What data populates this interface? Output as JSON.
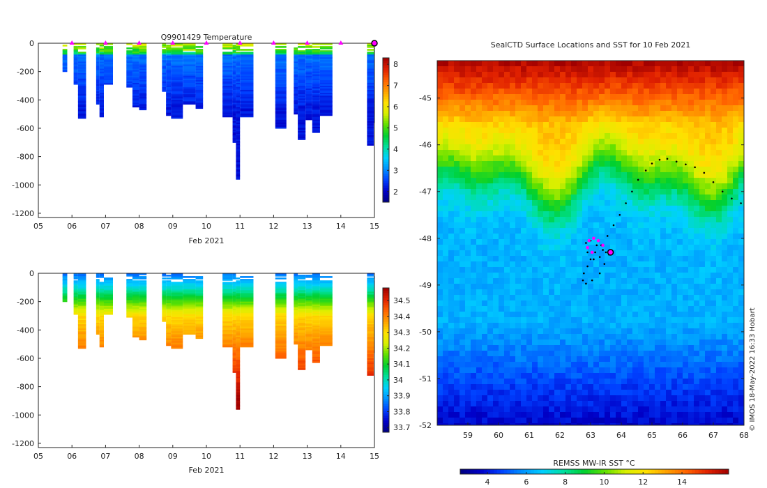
{
  "colors": {
    "temp_scale": [
      "#000080",
      "#0000c8",
      "#0040ff",
      "#0090ff",
      "#00d0ff",
      "#00e0a0",
      "#00d030",
      "#60e000",
      "#d8f000",
      "#ffe000",
      "#ffa000",
      "#ff6000",
      "#e02000",
      "#a00000"
    ],
    "sst_scale": [
      "#000080",
      "#0000c8",
      "#0040ff",
      "#0090ff",
      "#00d0ff",
      "#00e0a0",
      "#00d030",
      "#60e000",
      "#d8f000",
      "#ffe000",
      "#ffa000",
      "#ff6000",
      "#e02000",
      "#a00000"
    ],
    "sal_scale": [
      "#000080",
      "#0000c8",
      "#0040ff",
      "#0090ff",
      "#00d0ff",
      "#00e0a0",
      "#00d030",
      "#60e000",
      "#d8f000",
      "#ffe000",
      "#ffa000",
      "#ff6000",
      "#e02000",
      "#a00000"
    ],
    "marker": "#ff00ff",
    "track": "#000000"
  },
  "chart_data": [
    {
      "type": "heatmap",
      "id": "temperature",
      "title": "Q9901429  Temperature",
      "xlabel": "Feb 2021",
      "ylabel": "",
      "xlim": [
        5,
        15
      ],
      "ylim": [
        -1230,
        0
      ],
      "xticks": [
        "05",
        "06",
        "07",
        "08",
        "09",
        "10",
        "11",
        "12",
        "13",
        "14",
        "15"
      ],
      "yticks": [
        "0",
        "-200",
        "-400",
        "-600",
        "-800",
        "-1000",
        "-1200"
      ],
      "colorbar": {
        "min": 1.5,
        "max": 8.3,
        "ticks": [
          "2",
          "3",
          "4",
          "5",
          "6",
          "7",
          "8"
        ]
      },
      "surface_markers": [
        6,
        7,
        8,
        9,
        10,
        11,
        12,
        13,
        14
      ],
      "last_position": 15,
      "profiles": [
        {
          "t0": 5.72,
          "t1": 5.86,
          "depth": -200
        },
        {
          "t0": 6.05,
          "t1": 6.18,
          "depth": -290
        },
        {
          "t0": 6.18,
          "t1": 6.42,
          "depth": -530
        },
        {
          "t0": 6.72,
          "t1": 6.82,
          "depth": -430
        },
        {
          "t0": 6.82,
          "t1": 6.95,
          "depth": -520
        },
        {
          "t0": 6.95,
          "t1": 7.22,
          "depth": -285
        },
        {
          "t0": 7.62,
          "t1": 7.8,
          "depth": -310
        },
        {
          "t0": 7.8,
          "t1": 8.0,
          "depth": -445
        },
        {
          "t0": 8.0,
          "t1": 8.22,
          "depth": -470
        },
        {
          "t0": 8.68,
          "t1": 8.8,
          "depth": -340
        },
        {
          "t0": 8.8,
          "t1": 8.95,
          "depth": -510
        },
        {
          "t0": 8.95,
          "t1": 9.3,
          "depth": -525
        },
        {
          "t0": 9.3,
          "t1": 9.68,
          "depth": -425
        },
        {
          "t0": 9.68,
          "t1": 9.9,
          "depth": -460
        },
        {
          "t0": 10.48,
          "t1": 10.78,
          "depth": -520
        },
        {
          "t0": 10.78,
          "t1": 10.88,
          "depth": -700
        },
        {
          "t0": 10.88,
          "t1": 11.0,
          "depth": -960
        },
        {
          "t0": 11.0,
          "t1": 11.4,
          "depth": -515
        },
        {
          "t0": 12.05,
          "t1": 12.38,
          "depth": -600
        },
        {
          "t0": 12.6,
          "t1": 12.72,
          "depth": -500
        },
        {
          "t0": 12.72,
          "t1": 12.95,
          "depth": -680
        },
        {
          "t0": 12.95,
          "t1": 13.15,
          "depth": -540
        },
        {
          "t0": 13.15,
          "t1": 13.38,
          "depth": -630
        },
        {
          "t0": 13.38,
          "t1": 13.75,
          "depth": -510
        },
        {
          "t0": 14.78,
          "t1": 14.98,
          "depth": -720
        },
        {
          "t0": 14.98,
          "t1": 15.05,
          "depth": -560
        }
      ]
    },
    {
      "type": "heatmap",
      "id": "salinity",
      "title": "",
      "xlabel": "Feb 2021",
      "ylabel": "",
      "xlim": [
        5,
        15
      ],
      "ylim": [
        -1230,
        0
      ],
      "xticks": [
        "05",
        "06",
        "07",
        "08",
        "09",
        "10",
        "11",
        "12",
        "13",
        "14",
        "15"
      ],
      "yticks": [
        "0",
        "-200",
        "-400",
        "-600",
        "-800",
        "-1000",
        "-1200"
      ],
      "colorbar": {
        "min": 33.67,
        "max": 34.58,
        "ticks": [
          "33.7",
          "33.8",
          "33.9",
          "34",
          "34.1",
          "34.2",
          "34.3",
          "34.4",
          "34.5"
        ]
      }
    },
    {
      "type": "heatmap",
      "id": "sst_map",
      "title": "SealCTD Surface Locations and SST for 10 Feb 2021",
      "xlabel": "",
      "ylabel": "",
      "xlim": [
        58,
        68
      ],
      "ylim": [
        -52,
        -44.2
      ],
      "xticks": [
        "59",
        "60",
        "61",
        "62",
        "63",
        "64",
        "65",
        "66",
        "67",
        "68"
      ],
      "yticks": [
        "-45",
        "-46",
        "-47",
        "-48",
        "-49",
        "-50",
        "-51",
        "-52"
      ],
      "colorbar": {
        "label": "REMSS MW-IR SST °C",
        "min": 2.6,
        "max": 16.4,
        "ticks": [
          "4",
          "6",
          "8",
          "10",
          "12",
          "14"
        ]
      },
      "track": [
        [
          67.9,
          -47.25
        ],
        [
          67.6,
          -47.15
        ],
        [
          67.3,
          -47.0
        ],
        [
          67.0,
          -46.8
        ],
        [
          66.7,
          -46.6
        ],
        [
          66.4,
          -46.48
        ],
        [
          66.1,
          -46.42
        ],
        [
          65.8,
          -46.36
        ],
        [
          65.5,
          -46.3
        ],
        [
          65.25,
          -46.32
        ],
        [
          65.0,
          -46.4
        ],
        [
          64.8,
          -46.55
        ],
        [
          64.55,
          -46.75
        ],
        [
          64.35,
          -47.0
        ],
        [
          64.15,
          -47.25
        ],
        [
          63.95,
          -47.5
        ],
        [
          63.75,
          -47.72
        ],
        [
          63.55,
          -47.95
        ],
        [
          63.35,
          -48.15
        ],
        [
          63.15,
          -48.3
        ],
        [
          63.0,
          -48.45
        ],
        [
          62.9,
          -48.6
        ],
        [
          62.78,
          -48.75
        ],
        [
          62.75,
          -48.9
        ],
        [
          62.85,
          -48.97
        ],
        [
          63.05,
          -48.9
        ],
        [
          63.3,
          -48.75
        ],
        [
          63.45,
          -48.55
        ],
        [
          63.6,
          -48.35
        ],
        [
          63.4,
          -48.25
        ],
        [
          63.2,
          -48.15
        ],
        [
          63.0,
          -48.05
        ],
        [
          62.85,
          -48.1
        ],
        [
          62.9,
          -48.3
        ],
        [
          63.1,
          -48.45
        ],
        [
          63.3,
          -48.4
        ],
        [
          63.5,
          -48.3
        ]
      ],
      "surface_markers": [
        [
          62.95,
          -48.05
        ],
        [
          63.1,
          -48.0
        ],
        [
          63.25,
          -48.05
        ],
        [
          63.4,
          -48.15
        ],
        [
          62.9,
          -48.2
        ],
        [
          63.05,
          -48.3
        ]
      ],
      "last_position": [
        63.65,
        -48.3
      ]
    }
  ],
  "credit": "© IMOS 18-May-2022 16:33 Hobart"
}
